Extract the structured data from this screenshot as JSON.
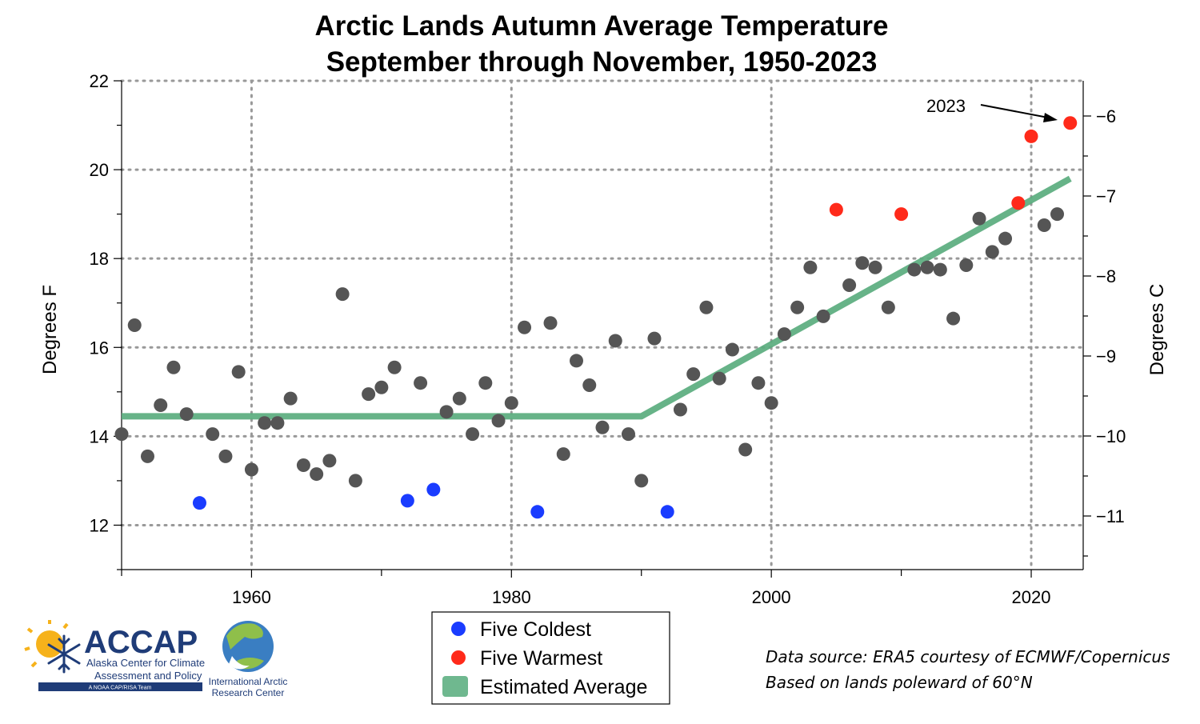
{
  "chart_data": {
    "type": "scatter",
    "title": "Arctic Lands Autumn Average Temperature",
    "subtitle": "September through November, 1950-2023",
    "ylabel": "Degrees F",
    "ylabel_right": "Degrees C",
    "xlim": [
      1950,
      2024
    ],
    "ylim": [
      11,
      22
    ],
    "ylim_right": [
      -11.67,
      -5.56
    ],
    "x_ticks": [
      "1960",
      "1980",
      "2000",
      "2020"
    ],
    "y_ticks": [
      "12",
      "14",
      "16",
      "18",
      "20",
      "22"
    ],
    "y_right_ticks": [
      "−6",
      "−7",
      "−8",
      "−9",
      "−10",
      "−11"
    ],
    "grid": true,
    "series": [
      {
        "name": "",
        "color": "#555555",
        "x": [
          1950,
          1951,
          1952,
          1953,
          1954,
          1955,
          1957,
          1958,
          1959,
          1960,
          1961,
          1962,
          1963,
          1964,
          1965,
          1966,
          1967,
          1968,
          1969,
          1970,
          1971,
          1973,
          1975,
          1976,
          1977,
          1978,
          1979,
          1980,
          1981,
          1983,
          1984,
          1985,
          1986,
          1987,
          1988,
          1989,
          1990,
          1991,
          1993,
          1994,
          1995,
          1996,
          1997,
          1998,
          1999,
          2000,
          2001,
          2002,
          2003,
          2004,
          2006,
          2007,
          2008,
          2009,
          2011,
          2012,
          2013,
          2014,
          2015,
          2016,
          2017,
          2018,
          2021,
          2022
        ],
        "y": [
          14.05,
          16.5,
          13.55,
          14.7,
          15.55,
          14.5,
          14.05,
          13.55,
          15.45,
          13.25,
          14.3,
          14.3,
          14.85,
          13.35,
          13.15,
          13.45,
          17.2,
          13.0,
          14.95,
          15.1,
          15.55,
          15.2,
          14.55,
          14.85,
          14.05,
          15.2,
          14.35,
          14.75,
          16.45,
          16.55,
          13.6,
          15.7,
          15.15,
          14.2,
          16.15,
          14.05,
          13.0,
          16.2,
          14.6,
          15.4,
          16.9,
          15.3,
          15.95,
          13.7,
          15.2,
          14.75,
          16.3,
          16.9,
          17.8,
          16.7,
          17.4,
          17.9,
          17.8,
          16.9,
          17.75,
          17.8,
          17.75,
          16.65,
          17.85,
          18.9,
          18.15,
          18.45,
          18.75,
          19.0
        ]
      },
      {
        "name": "Five Coldest",
        "color": "#1a3cff",
        "x": [
          1956,
          1972,
          1974,
          1982,
          1992
        ],
        "y": [
          12.5,
          12.55,
          12.8,
          12.3,
          12.3
        ]
      },
      {
        "name": "Five Warmest",
        "color": "#ff2a1a",
        "x": [
          2005,
          2010,
          2019,
          2020,
          2023
        ],
        "y": [
          19.1,
          19.0,
          19.25,
          20.75,
          21.05
        ]
      },
      {
        "name": "Estimated Average",
        "type": "line",
        "color": "#5aad7e",
        "x": [
          1950,
          1990,
          2023
        ],
        "y": [
          14.45,
          14.45,
          19.8
        ]
      }
    ],
    "annotations": [
      {
        "text": "2023",
        "points_to": [
          2023,
          21.05
        ]
      }
    ],
    "legend": {
      "placement": "bottom-center",
      "entries": [
        "Five Coldest",
        "Five Warmest",
        "Estimated Average"
      ]
    }
  },
  "notes": {
    "line1": "Data source: ERA5 courtesy of ECMWF/Copernicus",
    "line2": "Based on lands poleward of 60°N"
  },
  "logos": {
    "accap": {
      "acronym": "ACCAP",
      "line1": "Alaska Center for Climate",
      "line2": "Assessment and Policy",
      "line3": "A NOAA CAP/RISA Team"
    },
    "iarc": {
      "line1": "International Arctic",
      "line2": "Research Center"
    }
  }
}
